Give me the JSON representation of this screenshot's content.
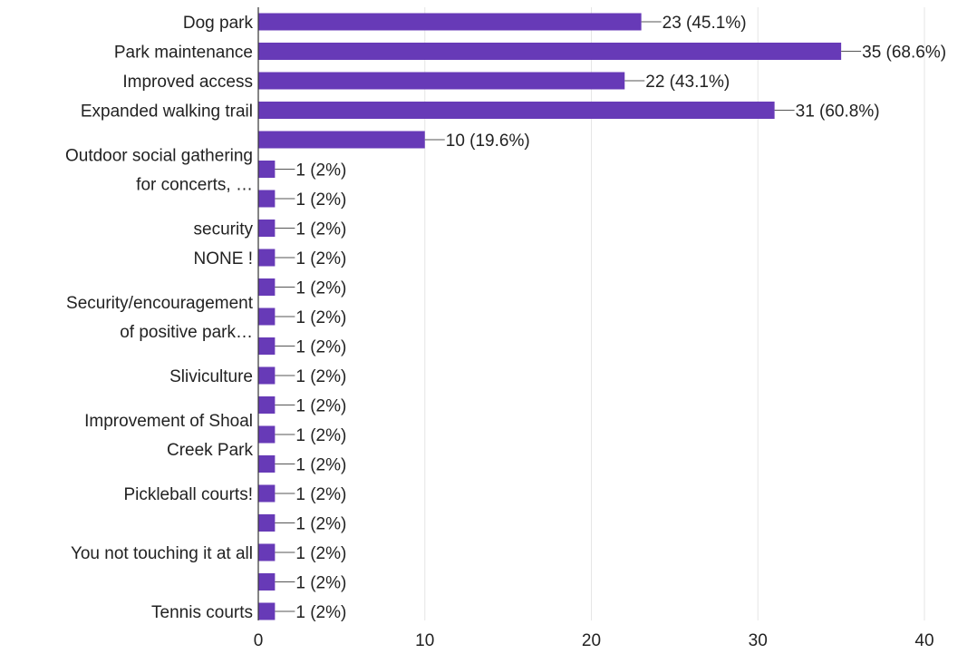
{
  "chart_data": {
    "type": "bar",
    "orientation": "horizontal",
    "title": "",
    "xlabel": "",
    "ylabel": "",
    "xlim": [
      0,
      40
    ],
    "x_ticks": [
      0,
      10,
      20,
      30,
      40
    ],
    "grid": true,
    "legend": "none",
    "bar_color": "#673ab7",
    "categories": [
      "Dog park",
      "Park maintenance",
      "Improved access",
      "Expanded walking trail",
      "",
      "",
      "",
      "",
      "",
      "",
      "",
      "",
      "",
      "",
      "",
      "",
      "",
      "",
      "",
      "",
      ""
    ],
    "group_labels": [
      {
        "lines": [
          "Outdoor social gathering",
          "for concerts, …"
        ],
        "rows": [
          4,
          6
        ]
      },
      {
        "lines": [
          "security"
        ],
        "rows": [
          7,
          7
        ]
      },
      {
        "lines": [
          "NONE !"
        ],
        "rows": [
          8,
          8
        ]
      },
      {
        "lines": [
          "Security/encouragement",
          "of positive park…"
        ],
        "rows": [
          9,
          11
        ]
      },
      {
        "lines": [
          "Sliviculture"
        ],
        "rows": [
          12,
          12
        ]
      },
      {
        "lines": [
          "Improvement of Shoal",
          "Creek Park"
        ],
        "rows": [
          13,
          15
        ]
      },
      {
        "lines": [
          "Pickleball courts!"
        ],
        "rows": [
          16,
          16
        ]
      },
      {
        "lines": [
          "You not touching it at all"
        ],
        "rows": [
          18,
          18
        ]
      },
      {
        "lines": [
          "Tennis courts"
        ],
        "rows": [
          20,
          20
        ]
      }
    ],
    "values": [
      23,
      35,
      22,
      31,
      10,
      1,
      1,
      1,
      1,
      1,
      1,
      1,
      1,
      1,
      1,
      1,
      1,
      1,
      1,
      1,
      1
    ],
    "value_labels": [
      "23 (45.1%)",
      "35 (68.6%)",
      "22 (43.1%)",
      "31 (60.8%)",
      "10 (19.6%)",
      "1 (2%)",
      "1 (2%)",
      "1 (2%)",
      "1 (2%)",
      "1 (2%)",
      "1 (2%)",
      "1 (2%)",
      "1 (2%)",
      "1 (2%)",
      "1 (2%)",
      "1 (2%)",
      "1 (2%)",
      "1 (2%)",
      "1 (2%)",
      "1 (2%)",
      "1 (2%)"
    ]
  }
}
